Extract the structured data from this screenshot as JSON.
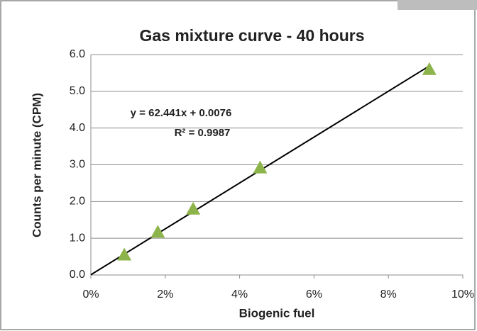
{
  "chart_data": {
    "type": "scatter",
    "title": "Gas mixture curve - 40 hours",
    "x_label": "Biogenic fuel",
    "y_label": "Counts per minute (CPM)",
    "x": [
      0.9,
      1.8,
      2.75,
      4.55,
      9.1
    ],
    "values": [
      0.55,
      1.17,
      1.8,
      2.92,
      5.6
    ],
    "color": "#8db44b",
    "trendline": {
      "x": [
        0,
        9.1
      ],
      "y": [
        0.0076,
        5.69
      ],
      "color": "#000000"
    },
    "annotations": [
      "y = 62.441x + 0.0076",
      "R² = 0.9987"
    ],
    "xlim": [
      0,
      10
    ],
    "xticks": [
      {
        "value": 0,
        "label": "0%"
      },
      {
        "value": 2,
        "label": "2%"
      },
      {
        "value": 4,
        "label": "4%"
      },
      {
        "value": 6,
        "label": "6%"
      },
      {
        "value": 8,
        "label": "8%"
      },
      {
        "value": 10,
        "label": "10%"
      }
    ],
    "ylim": [
      0,
      6
    ],
    "yticks": [
      {
        "value": 0,
        "label": "0.0"
      },
      {
        "value": 1,
        "label": "1.0"
      },
      {
        "value": 2,
        "label": "2.0"
      },
      {
        "value": 3,
        "label": "3.0"
      },
      {
        "value": 4,
        "label": "4.0"
      },
      {
        "value": 5,
        "label": "5.0"
      },
      {
        "value": 6,
        "label": "6.0"
      }
    ],
    "grid": true
  }
}
